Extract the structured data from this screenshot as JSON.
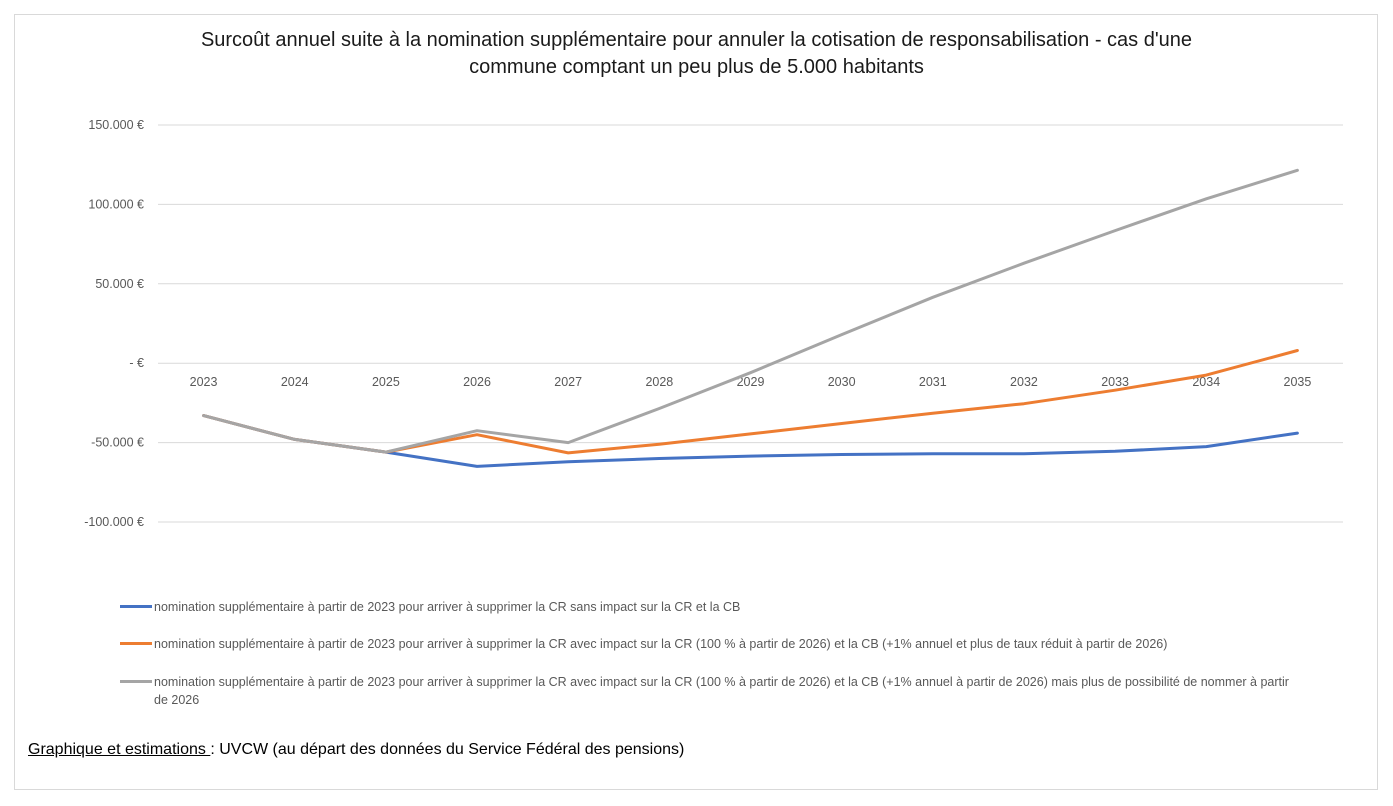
{
  "chart_data": {
    "type": "line",
    "title_line1": "Surcoût annuel suite à la nomination supplémentaire pour annuler la cotisation de responsabilisation - cas d'une",
    "title_line2": "commune comptant un peu plus de 5.000 habitants",
    "x": [
      "2023",
      "2024",
      "2025",
      "2026",
      "2027",
      "2028",
      "2029",
      "2030",
      "2031",
      "2032",
      "2033",
      "2034",
      "2035"
    ],
    "y_ticks": [
      "150.000 €",
      "100.000 €",
      "50.000 €",
      "- €",
      "-50.000 €",
      "-100.000 €"
    ],
    "y_tick_values": [
      150000,
      100000,
      50000,
      0,
      -50000,
      -100000
    ],
    "ylim": [
      -100000,
      150000
    ],
    "grid": true,
    "legend_position": "bottom",
    "series": [
      {
        "name": "nomination supplémentaire à partir de 2023 pour arriver à supprimer la CR sans impact sur la CR et la CB",
        "color": "#4472C4",
        "values": [
          -33000,
          -48000,
          -56000,
          -65000,
          -62000,
          -60000,
          -58500,
          -57500,
          -57000,
          -57000,
          -55500,
          -52500,
          -44000
        ]
      },
      {
        "name": "nomination supplémentaire à partir de 2023 pour arriver à supprimer la CR avec impact sur la CR (100 % à partir de 2026) et la CB (+1% annuel et plus de taux réduit à partir de 2026)",
        "color": "#ED7D31",
        "values": [
          -33000,
          -48000,
          -56000,
          -45000,
          -56500,
          -51000,
          -44500,
          -38000,
          -31500,
          -25500,
          -17000,
          -7500,
          8000
        ]
      },
      {
        "name": "nomination supplémentaire à partir de 2023 pour arriver à supprimer la CR avec impact sur la CR (100 % à partir de 2026) et la CB (+1% annuel à partir de 2026) mais plus de possibilité de nommer à partir de 2026",
        "color": "#A5A5A5",
        "values": [
          -33000,
          -48000,
          -56000,
          -42500,
          -50000,
          -28500,
          -6000,
          18000,
          41500,
          63000,
          83500,
          103500,
          121500
        ]
      }
    ]
  },
  "source": {
    "label": "Graphique et estimations ",
    "text": ": UVCW (au départ des données du Service Fédéral des pensions)"
  }
}
